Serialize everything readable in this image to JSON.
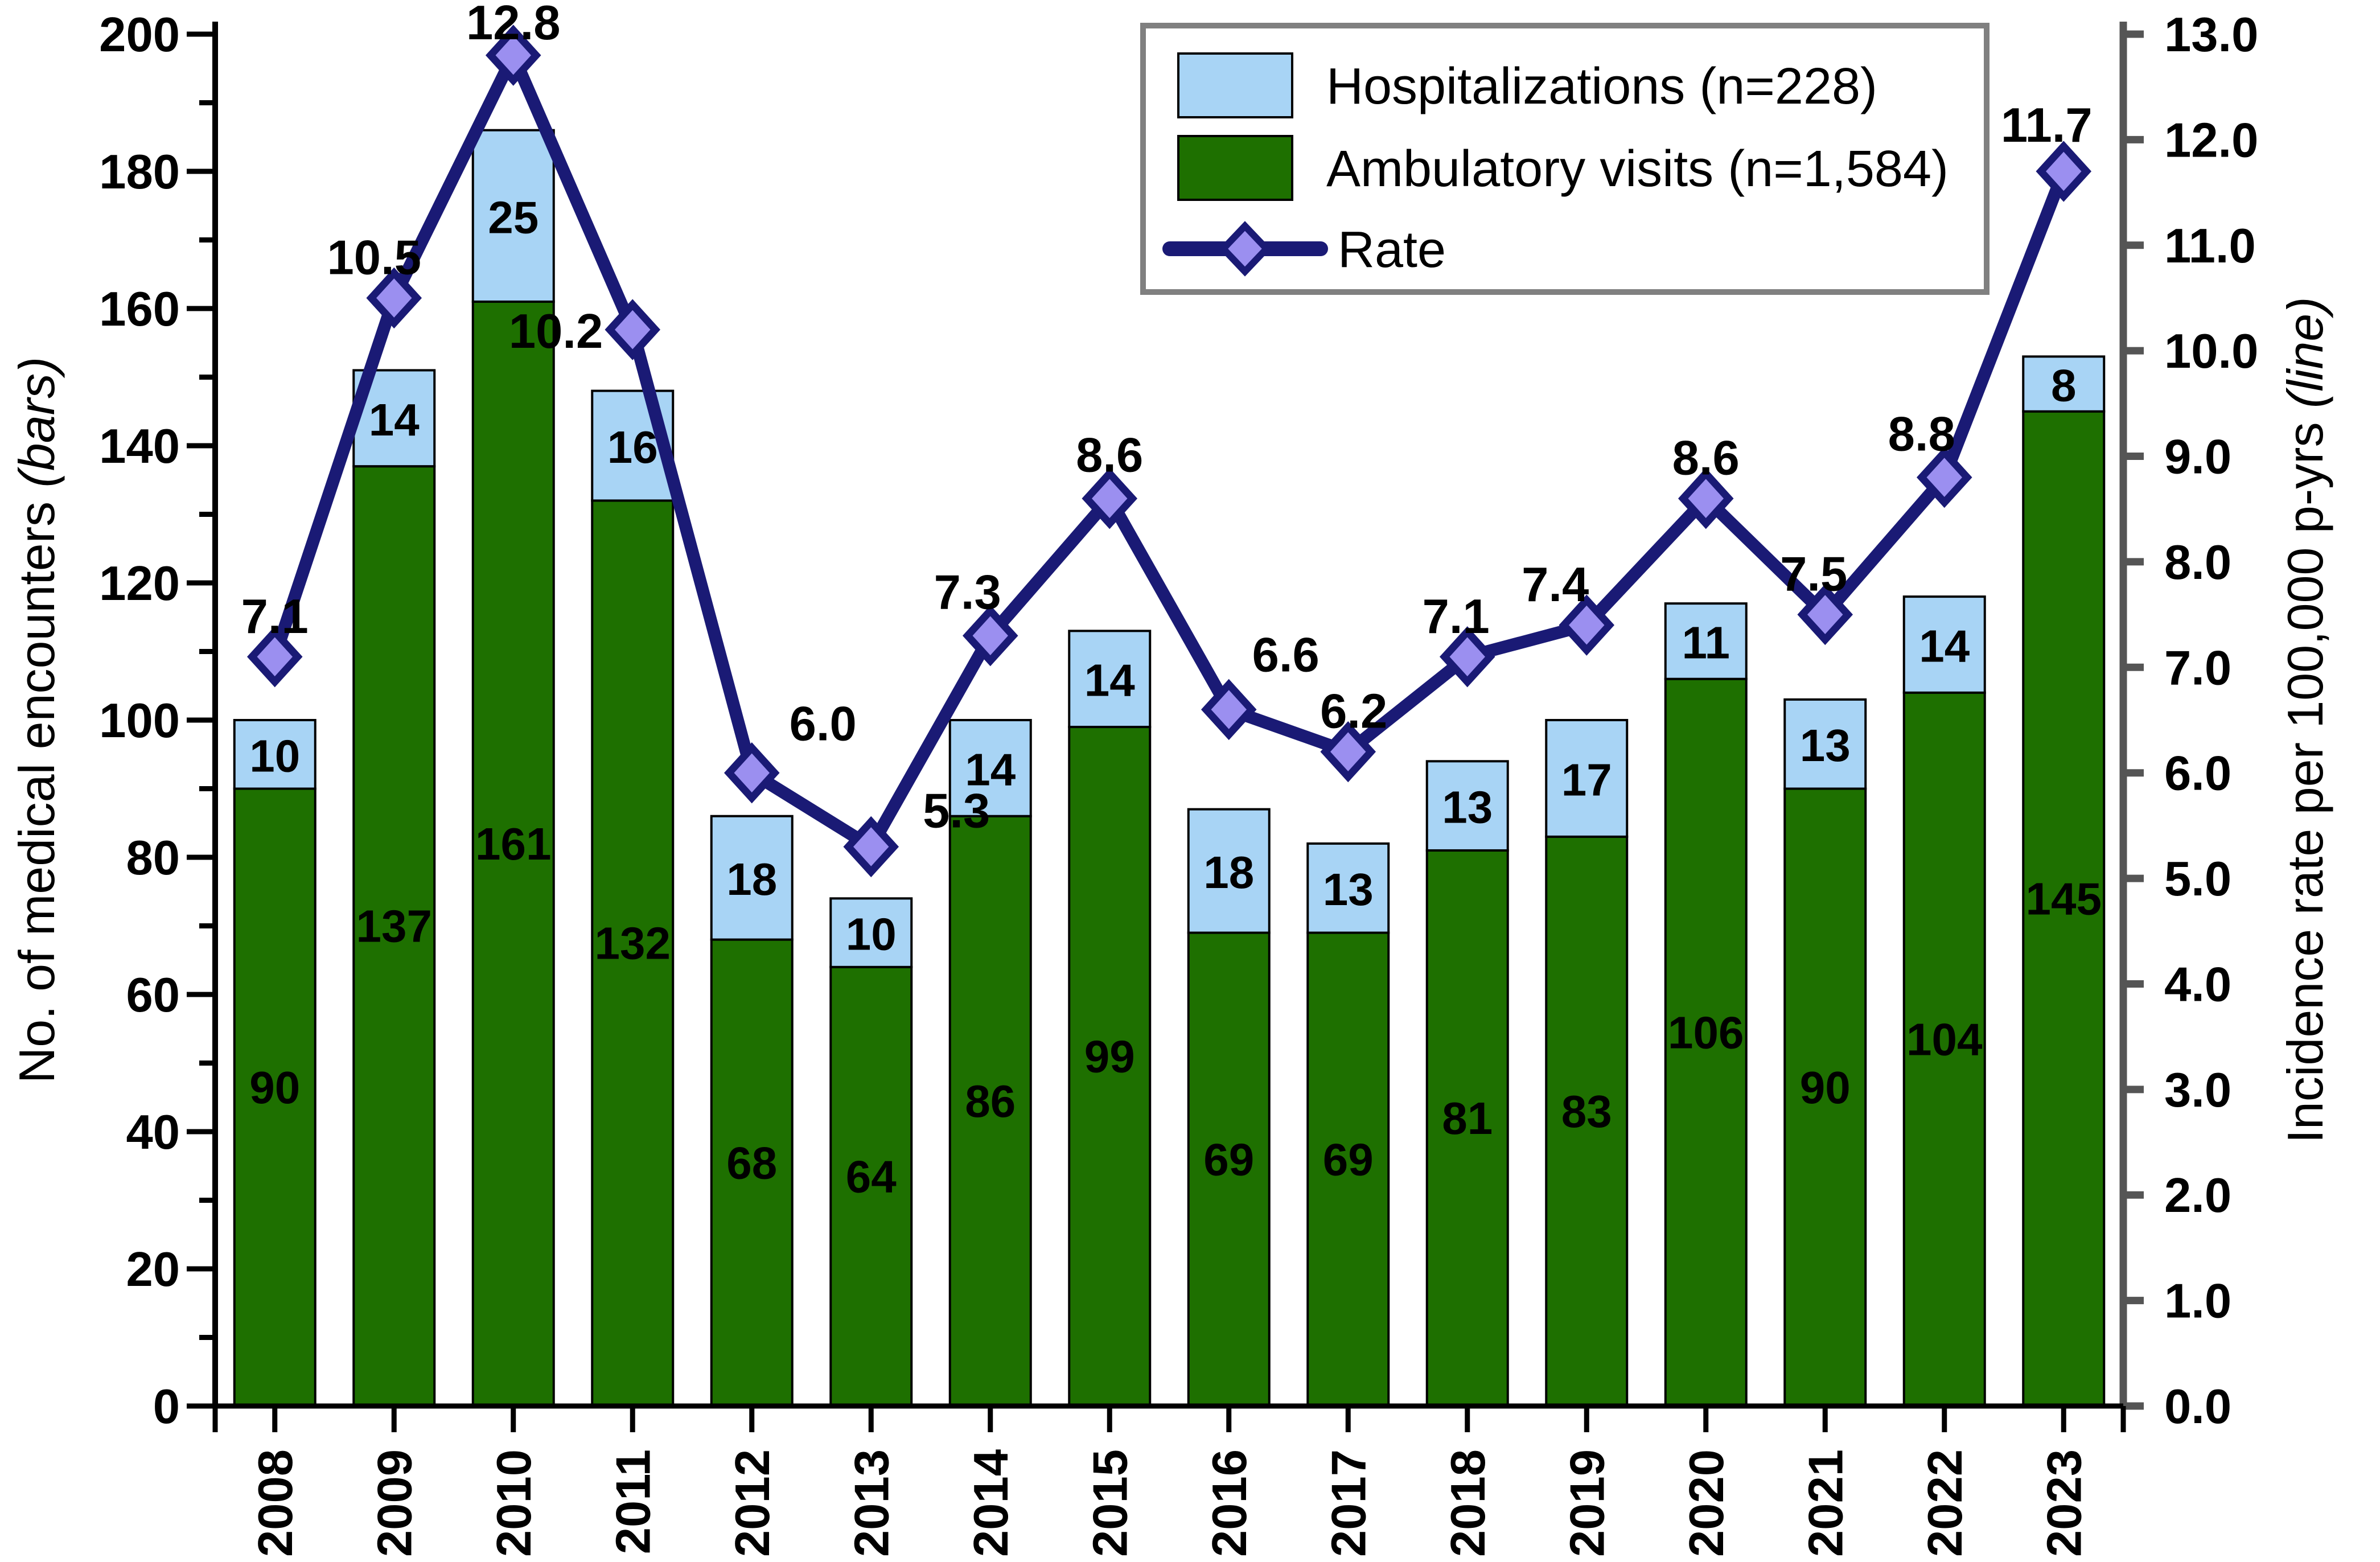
{
  "figure": {
    "left_axis": {
      "title": "No. of medical encounters ",
      "title_italic": "(bars)",
      "ticks": [
        "0",
        "20",
        "40",
        "60",
        "80",
        "100",
        "120",
        "140",
        "160",
        "180",
        "200"
      ]
    },
    "right_axis": {
      "title": "Incidence rate per 100,000 p-yrs ",
      "title_italic": "(line)",
      "ticks": [
        "0.0",
        "1.0",
        "2.0",
        "3.0",
        "4.0",
        "5.0",
        "6.0",
        "7.0",
        "8.0",
        "9.0",
        "10.0",
        "11.0",
        "12.0",
        "13.0"
      ]
    },
    "legend": {
      "items": [
        {
          "label": "Hospitalizations (n=228)"
        },
        {
          "label": "Ambulatory visits (n=1,584)"
        },
        {
          "label": "Rate"
        }
      ]
    }
  },
  "chart_data": {
    "type": "bar",
    "subtype": "stacked-bar-with-line-dual-axis",
    "categories": [
      "2008",
      "2009",
      "2010",
      "2011",
      "2012",
      "2013",
      "2014",
      "2015",
      "2016",
      "2017",
      "2018",
      "2019",
      "2020",
      "2021",
      "2022",
      "2023"
    ],
    "xlabel": "",
    "ylabel_left": "No. of medical encounters (bars)",
    "ylabel_right": "Incidence rate per 100,000 p-yrs (line)",
    "ylim_left": [
      0,
      200
    ],
    "ylim_right": [
      0,
      13
    ],
    "left_major_step": 20,
    "left_minor_step": 10,
    "right_major_step": 1.0,
    "grid": false,
    "legend_position": "top-right-inside",
    "background": "#FFFFFF",
    "series": [
      {
        "name": "Ambulatory visits (n=1,584)",
        "type": "bar",
        "stack": "encounters",
        "axis": "left",
        "color": "#1E7000",
        "border_color": "#000000",
        "label_color": "#FFFFFF",
        "values": [
          90,
          137,
          161,
          132,
          68,
          64,
          86,
          99,
          69,
          69,
          81,
          83,
          106,
          90,
          104,
          145
        ]
      },
      {
        "name": "Hospitalizations (n=228)",
        "type": "bar",
        "stack": "encounters",
        "axis": "left",
        "color": "#A8D4F5",
        "border_color": "#000000",
        "label_color": "#000000",
        "values": [
          10,
          14,
          25,
          16,
          18,
          10,
          14,
          14,
          18,
          13,
          13,
          17,
          11,
          13,
          14,
          8
        ]
      },
      {
        "name": "Rate",
        "type": "line",
        "axis": "right",
        "color": "#1A1A75",
        "marker": "diamond",
        "marker_fill": "#9B8FF0",
        "values": [
          7.1,
          10.5,
          12.8,
          10.2,
          6.0,
          5.3,
          7.3,
          8.6,
          6.6,
          6.2,
          7.1,
          7.4,
          8.6,
          7.5,
          8.8,
          11.7
        ],
        "labels": [
          "7.1",
          "10.5",
          "12.8",
          "10.2",
          "6.0",
          "5.3",
          "7.3",
          "8.6",
          "6.6",
          "6.2",
          "7.1",
          "7.4",
          "8.6",
          "7.5",
          "8.8",
          "11.7"
        ]
      }
    ],
    "rate_label_layout": [
      [
        0,
        0,
        "middle"
      ],
      [
        -35,
        0,
        "middle"
      ],
      [
        0,
        14,
        "middle"
      ],
      [
        -52,
        74,
        "end"
      ],
      [
        125,
        -15,
        "middle"
      ],
      [
        150,
        8,
        "middle"
      ],
      [
        -40,
        -5,
        "middle"
      ],
      [
        0,
        -5,
        "middle"
      ],
      [
        100,
        -25,
        "middle"
      ],
      [
        10,
        0,
        "middle"
      ],
      [
        -20,
        0,
        "middle"
      ],
      [
        -55,
        0,
        "middle"
      ],
      [
        0,
        0,
        "middle"
      ],
      [
        -20,
        0,
        "middle"
      ],
      [
        -40,
        -5,
        "middle"
      ],
      [
        -30,
        -10,
        "middle"
      ]
    ]
  }
}
